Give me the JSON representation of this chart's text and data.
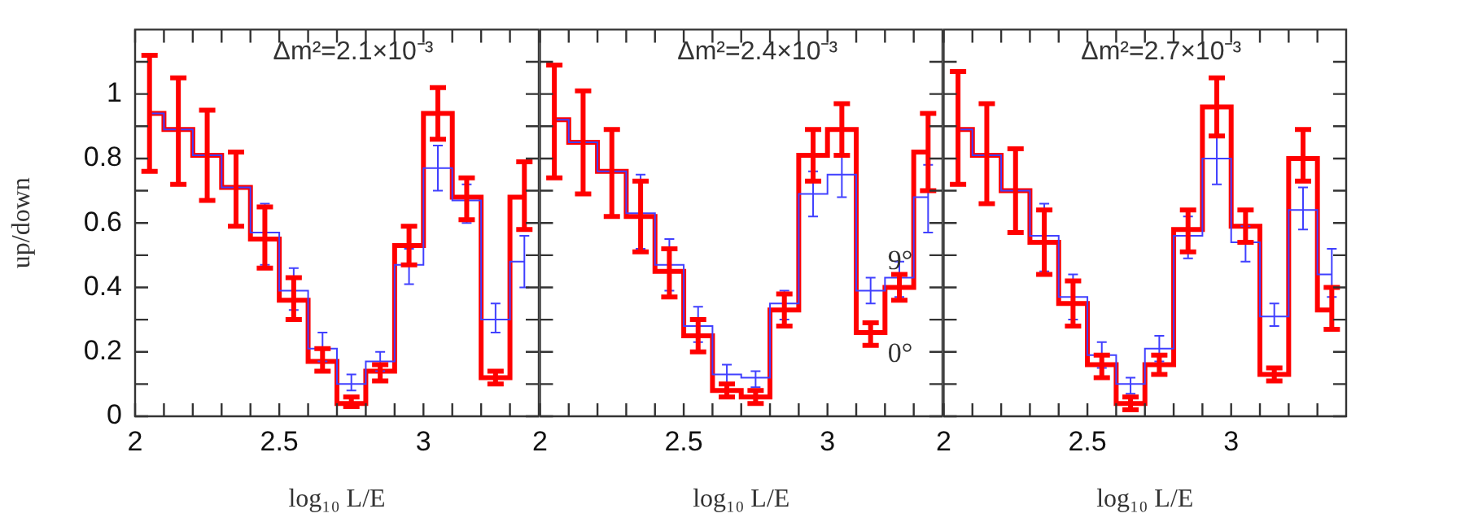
{
  "chart_data": [
    {
      "type": "step",
      "title": "Δm²=2.1×10⁻³",
      "xlabel": "log₁₀ L/E",
      "ylabel": "up/down",
      "x": [
        2.05,
        2.15,
        2.25,
        2.35,
        2.45,
        2.55,
        2.65,
        2.75,
        2.85,
        2.95,
        3.05,
        3.15,
        3.25,
        3.35
      ],
      "series": [
        {
          "color": "#ff0000",
          "values": [
            0.94,
            0.89,
            0.81,
            0.71,
            0.55,
            0.36,
            0.17,
            0.04,
            0.14,
            0.53,
            0.94,
            0.68,
            0.12,
            0.68
          ],
          "errors": [
            [
              0.76,
              1.12
            ],
            [
              0.72,
              1.05
            ],
            [
              0.67,
              0.95
            ],
            [
              0.59,
              0.82
            ],
            [
              0.46,
              0.65
            ],
            [
              0.3,
              0.43
            ],
            [
              0.14,
              0.21
            ],
            [
              0.03,
              0.06
            ],
            [
              0.11,
              0.16
            ],
            [
              0.47,
              0.59
            ],
            [
              0.86,
              1.02
            ],
            [
              0.61,
              0.74
            ],
            [
              0.1,
              0.14
            ],
            [
              0.58,
              0.79
            ]
          ]
        },
        {
          "color": "#4040ff",
          "values": [
            0.94,
            0.89,
            0.81,
            0.71,
            0.57,
            0.39,
            0.21,
            0.1,
            0.17,
            0.47,
            0.77,
            0.67,
            0.3,
            0.48
          ],
          "errors": [
            null,
            null,
            null,
            null,
            [
              0.47,
              0.66
            ],
            [
              0.33,
              0.46
            ],
            [
              0.17,
              0.26
            ],
            [
              0.08,
              0.13
            ],
            [
              0.14,
              0.2
            ],
            [
              0.41,
              0.52
            ],
            [
              0.7,
              0.84
            ],
            [
              0.6,
              0.72
            ],
            [
              0.26,
              0.35
            ],
            [
              0.4,
              0.56
            ]
          ]
        }
      ],
      "xlim": [
        2,
        3.4
      ],
      "xticks": [
        2,
        {
          "value": 2.1,
          "label": null
        },
        {
          "value": 2.2,
          "label": null
        },
        {
          "value": 2.3,
          "label": null
        },
        {
          "value": 2.4,
          "label": null
        },
        2.5,
        {
          "value": 2.6,
          "label": null
        },
        {
          "value": 2.7,
          "label": null
        },
        {
          "value": 2.8,
          "label": null
        },
        {
          "value": 2.9,
          "label": null
        },
        3,
        {
          "value": 3.1,
          "label": null
        },
        {
          "value": 3.2,
          "label": null
        },
        {
          "value": 3.3,
          "label": null
        }
      ],
      "ylim": [
        0,
        1.2
      ],
      "yticks": [
        0,
        {
          "value": 0.1,
          "label": null
        },
        0.2,
        {
          "value": 0.3,
          "label": null
        },
        0.4,
        {
          "value": 0.5,
          "label": null
        },
        0.6,
        {
          "value": 0.7,
          "label": null
        },
        0.8,
        {
          "value": 0.9,
          "label": null
        },
        1,
        {
          "value": 1.1,
          "label": null
        }
      ]
    },
    {
      "type": "step",
      "title": "Δm²=2.4×10⁻³",
      "xlabel": "log₁₀ L/E",
      "x": [
        2.05,
        2.15,
        2.25,
        2.35,
        2.45,
        2.55,
        2.65,
        2.75,
        2.85,
        2.95,
        3.05,
        3.15,
        3.25,
        3.35
      ],
      "series": [
        {
          "color": "#ff0000",
          "values": [
            0.92,
            0.85,
            0.76,
            0.62,
            0.45,
            0.25,
            0.08,
            0.06,
            0.33,
            0.81,
            0.89,
            0.26,
            0.4,
            0.82
          ],
          "errors": [
            [
              0.74,
              1.09
            ],
            [
              0.69,
              1.01
            ],
            [
              0.62,
              0.89
            ],
            [
              0.51,
              0.73
            ],
            [
              0.37,
              0.52
            ],
            [
              0.2,
              0.3
            ],
            [
              0.06,
              0.1
            ],
            [
              0.04,
              0.08
            ],
            [
              0.28,
              0.38
            ],
            [
              0.73,
              0.89
            ],
            [
              0.81,
              0.97
            ],
            [
              0.22,
              0.29
            ],
            [
              0.36,
              0.44
            ],
            [
              0.7,
              0.94
            ]
          ]
        },
        {
          "color": "#4040ff",
          "values": [
            0.92,
            0.85,
            0.76,
            0.63,
            0.47,
            0.28,
            0.13,
            0.12,
            0.35,
            0.69,
            0.75,
            0.39,
            0.43,
            0.68
          ],
          "errors": [
            null,
            null,
            null,
            [
              0.52,
              0.75
            ],
            [
              0.39,
              0.55
            ],
            [
              0.23,
              0.34
            ],
            [
              0.1,
              0.16
            ],
            [
              0.09,
              0.14
            ],
            [
              0.3,
              0.39
            ],
            [
              0.62,
              0.76
            ],
            [
              0.68,
              0.81
            ],
            [
              0.35,
              0.43
            ],
            [
              0.37,
              0.48
            ],
            [
              0.57,
              0.78
            ]
          ]
        }
      ],
      "annotations": [
        "9°",
        "0°"
      ],
      "xlim": [
        2,
        3.4
      ],
      "xticks": [
        2,
        {
          "value": 2.1,
          "label": null
        },
        {
          "value": 2.2,
          "label": null
        },
        {
          "value": 2.3,
          "label": null
        },
        {
          "value": 2.4,
          "label": null
        },
        2.5,
        {
          "value": 2.6,
          "label": null
        },
        {
          "value": 2.7,
          "label": null
        },
        {
          "value": 2.8,
          "label": null
        },
        {
          "value": 2.9,
          "label": null
        },
        3,
        {
          "value": 3.1,
          "label": null
        },
        {
          "value": 3.2,
          "label": null
        },
        {
          "value": 3.3,
          "label": null
        }
      ],
      "ylim": [
        0,
        1.2
      ],
      "yticks": [
        0,
        {
          "value": 0.1,
          "label": null
        },
        0.2,
        {
          "value": 0.3,
          "label": null
        },
        0.4,
        {
          "value": 0.5,
          "label": null
        },
        0.6,
        {
          "value": 0.7,
          "label": null
        },
        0.8,
        {
          "value": 0.9,
          "label": null
        },
        1,
        {
          "value": 1.1,
          "label": null
        }
      ],
      "tick_labels": "x"
    },
    {
      "type": "step",
      "title": "Δm²=2.7×10⁻³",
      "xlabel": "log₁₀ L/E",
      "x": [
        2.05,
        2.15,
        2.25,
        2.35,
        2.45,
        2.55,
        2.65,
        2.75,
        2.85,
        2.95,
        3.05,
        3.15,
        3.25,
        3.35
      ],
      "series": [
        {
          "color": "#ff0000",
          "values": [
            0.89,
            0.81,
            0.7,
            0.54,
            0.35,
            0.16,
            0.04,
            0.16,
            0.58,
            0.96,
            0.59,
            0.13,
            0.8,
            0.33
          ],
          "errors": [
            [
              0.72,
              1.07
            ],
            [
              0.66,
              0.97
            ],
            [
              0.57,
              0.83
            ],
            [
              0.44,
              0.64
            ],
            [
              0.28,
              0.42
            ],
            [
              0.12,
              0.19
            ],
            [
              0.02,
              0.06
            ],
            [
              0.13,
              0.19
            ],
            [
              0.51,
              0.64
            ],
            [
              0.87,
              1.05
            ],
            [
              0.54,
              0.64
            ],
            [
              0.11,
              0.15
            ],
            [
              0.73,
              0.89
            ],
            [
              0.27,
              0.4
            ]
          ]
        },
        {
          "color": "#4040ff",
          "values": [
            0.89,
            0.81,
            0.7,
            0.56,
            0.37,
            0.19,
            0.1,
            0.21,
            0.56,
            0.8,
            0.54,
            0.31,
            0.64,
            0.44
          ],
          "errors": [
            null,
            null,
            null,
            [
              0.45,
              0.66
            ],
            [
              0.3,
              0.44
            ],
            [
              0.15,
              0.23
            ],
            [
              0.07,
              0.12
            ],
            [
              0.17,
              0.25
            ],
            [
              0.49,
              0.62
            ],
            [
              0.72,
              0.87
            ],
            [
              0.48,
              0.59
            ],
            [
              0.28,
              0.35
            ],
            [
              0.58,
              0.71
            ],
            [
              0.37,
              0.52
            ]
          ]
        }
      ],
      "xlim": [
        2,
        3.4
      ],
      "xticks": [
        2,
        {
          "value": 2.1,
          "label": null
        },
        {
          "value": 2.2,
          "label": null
        },
        {
          "value": 2.3,
          "label": null
        },
        {
          "value": 2.4,
          "label": null
        },
        2.5,
        {
          "value": 2.6,
          "label": null
        },
        {
          "value": 2.7,
          "label": null
        },
        {
          "value": 2.8,
          "label": null
        },
        {
          "value": 2.9,
          "label": null
        },
        3,
        {
          "value": 3.1,
          "label": null
        },
        {
          "value": 3.2,
          "label": null
        },
        {
          "value": 3.3,
          "label": null
        }
      ],
      "ylim": [
        0,
        1.2
      ],
      "yticks": [
        0,
        {
          "value": 0.1,
          "label": null
        },
        0.2,
        {
          "value": 0.3,
          "label": null
        },
        0.4,
        {
          "value": 0.5,
          "label": null
        },
        0.6,
        {
          "value": 0.7,
          "label": null
        },
        0.8,
        {
          "value": 0.9,
          "label": null
        },
        1,
        {
          "value": 1.1,
          "label": null
        }
      ],
      "tick_labels": "x"
    }
  ]
}
